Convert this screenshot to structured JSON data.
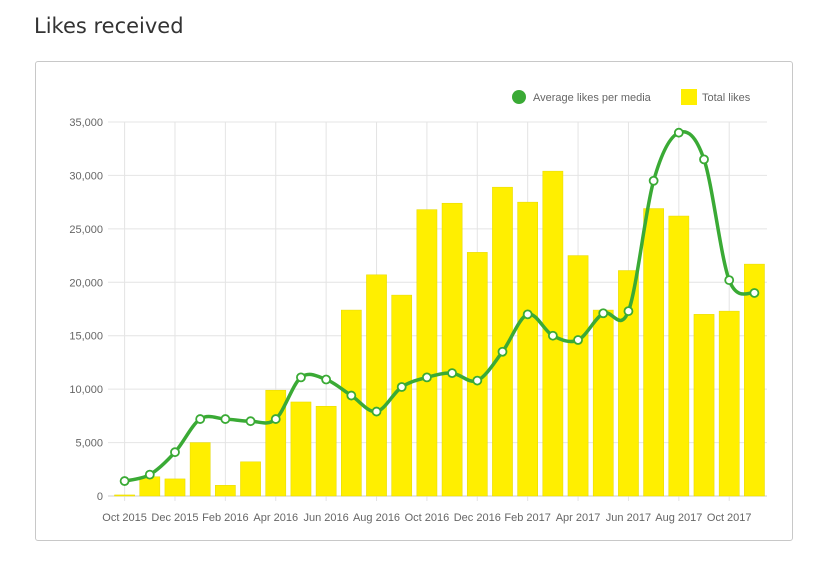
{
  "page": {
    "title": "Likes received"
  },
  "chart_data": {
    "type": "bar",
    "title": "Likes received",
    "categories": [
      "Oct 2015",
      "Nov 2015",
      "Dec 2015",
      "Jan 2016",
      "Feb 2016",
      "Mar 2016",
      "Apr 2016",
      "May 2016",
      "Jun 2016",
      "Jul 2016",
      "Aug 2016",
      "Sep 2016",
      "Oct 2016",
      "Nov 2016",
      "Dec 2016",
      "Jan 2017",
      "Feb 2017",
      "Mar 2017",
      "Apr 2017",
      "May 2017",
      "Jun 2017",
      "Jul 2017",
      "Aug 2017",
      "Sep 2017",
      "Oct 2017",
      "Nov 2017"
    ],
    "x_tick_labels": [
      "Oct 2015",
      "Dec 2015",
      "Feb 2016",
      "Apr 2016",
      "Jun 2016",
      "Aug 2016",
      "Oct 2016",
      "Dec 2016",
      "Feb 2017",
      "Apr 2017",
      "Jun 2017",
      "Aug 2017",
      "Oct 2017"
    ],
    "y_tick_labels": [
      "0",
      "5,000",
      "10,000",
      "15,000",
      "20,000",
      "25,000",
      "30,000",
      "35,000"
    ],
    "ylim": [
      0,
      35000
    ],
    "grid": true,
    "legend_position": "top-right",
    "series": [
      {
        "name": "Total likes",
        "type": "bar",
        "color": "#ffef00",
        "values": [
          100,
          1800,
          1600,
          5000,
          1000,
          3200,
          9900,
          8800,
          8400,
          17400,
          20700,
          18800,
          26800,
          27400,
          22800,
          28900,
          27500,
          30400,
          22500,
          17400,
          21100,
          26900,
          26200,
          17000,
          17300,
          21700
        ]
      },
      {
        "name": "Average likes per media",
        "type": "line",
        "color": "#3aaa35",
        "values": [
          1400,
          2000,
          4100,
          7200,
          7200,
          7000,
          7200,
          11100,
          10900,
          9400,
          7900,
          10200,
          11100,
          11500,
          10800,
          13500,
          17000,
          15000,
          14600,
          17100,
          17300,
          29500,
          34000,
          31500,
          20200,
          19000
        ]
      }
    ]
  }
}
